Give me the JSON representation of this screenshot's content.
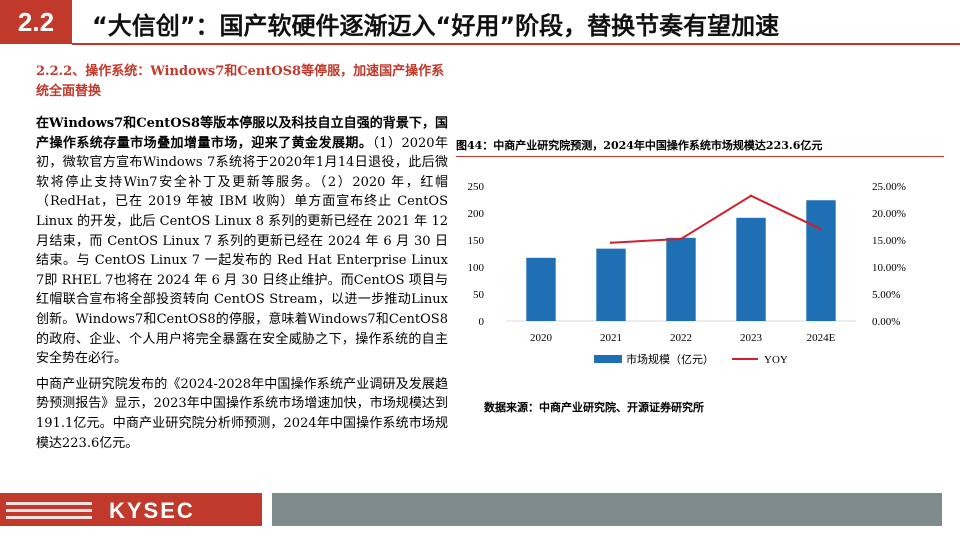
{
  "header": {
    "section_number": "2.2",
    "title": "“大信创”：国产软硬件逐渐迈入“好用”阶段，替换节奏有望加速"
  },
  "left": {
    "subheading": "2.2.2、操作系统：Windows7和CentOS8等停服，加速国产操作系统全面替换",
    "para1_bold": "在Windows7和CentOS8等版本停服以及科技自立自强的背景下，国产操作系统存量市场叠加增量市场，迎来了黄金发展期。",
    "para1_rest": "（1）2020年初，微软官方宣布Windows 7系统将于2020年1月14日退役，此后微软将停止支持Win7安全补丁及更新等服务。（2）2020 年，红帽（RedHat，已在 2019 年被 IBM 收购）单方面宣布终止 CentOS Linux 的开发，此后 CentOS Linux 8 系列的更新已经在 2021 年 12 月结束，而 CentOS Linux 7 系列的更新已经在 2024 年 6 月 30 日结束。与 CentOS Linux 7 一起发布的 Red Hat Enterprise Linux 7即 RHEL 7也将在 2024 年 6 月 30 日终止维护。而CentOS 项目与红帽联合宣布将全部投资转向 CentOS Stream，以进一步推动Linux创新。Windows7和CentOS8的停服，意味着Windows7和CentOS8的政府、企业、个人用户将完全暴露在安全威胁之下，操作系统的自主安全势在必行。",
    "para2": "中商产业研究院发布的《2024-2028年中国操作系统产业调研及发展趋势预测报告》显示，2023年中国操作系统市场增速加快，市场规模达到191.1亿元。中商产业研究院分析师预测，2024年中国操作系统市场规模达223.6亿元。"
  },
  "figure": {
    "title": "图44：中商产业研究院预测，2024年中国操作系统市场规模达223.6亿元",
    "source": "数据来源：中商产业研究院、开源证券研究所"
  },
  "chart_data": {
    "type": "bar",
    "categories": [
      "2020",
      "2021",
      "2022",
      "2023",
      "2024E"
    ],
    "series": [
      {
        "name": "市场规模（亿元）",
        "kind": "bar",
        "axis": "left",
        "values": [
          117,
          134,
          154,
          191.1,
          223.6
        ]
      },
      {
        "name": "YOY",
        "kind": "line",
        "axis": "right",
        "values": [
          null,
          14.5,
          15.2,
          23.2,
          17.0
        ]
      }
    ],
    "ylim_left": [
      0,
      250
    ],
    "yticks_left": [
      "250",
      "200",
      "150",
      "100",
      "50",
      "0"
    ],
    "ylim_right": [
      0,
      25
    ],
    "yticks_right": [
      "25.00%",
      "20.00%",
      "15.00%",
      "10.00%",
      "5.00%",
      "0.00%"
    ],
    "bar_color": "#1f6fb4",
    "line_color": "#d0202b",
    "legend_position": "bottom",
    "grid": false
  },
  "footer": {
    "logo": "KYSEC",
    "accent_color": "#c0392b",
    "bar_color": "#7f8c8d"
  }
}
